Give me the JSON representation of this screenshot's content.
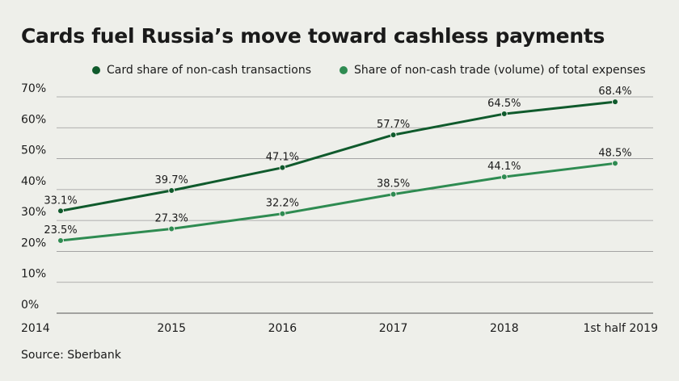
{
  "colors": {
    "background": "#eeefea",
    "series_dark": "#0f5a2c",
    "series_light": "#2e8b51",
    "grid": "#9a9a9a"
  },
  "source": "Source: Sberbank",
  "chart_data": {
    "type": "line",
    "title": "Cards fuel Russia’s move toward cashless payments",
    "categories": [
      "2014",
      "2015",
      "2016",
      "2017",
      "2018",
      "1st half 2019"
    ],
    "y_ticks": [
      "0%",
      "10%",
      "20%",
      "30%",
      "40%",
      "50%",
      "60%",
      "70%"
    ],
    "ylim": [
      0,
      70
    ],
    "grid": true,
    "legend_position": "top",
    "series": [
      {
        "name": "Card share of non-cash transactions",
        "values": [
          33.1,
          39.7,
          47.1,
          57.7,
          64.5,
          68.4
        ],
        "labels": [
          "33.1%",
          "39.7%",
          "47.1%",
          "57.7%",
          "64.5%",
          "68.4%"
        ],
        "color": "#0f5a2c"
      },
      {
        "name": "Share of non-cash trade (volume) of total expenses",
        "values": [
          23.5,
          27.3,
          32.2,
          38.5,
          44.1,
          48.5
        ],
        "labels": [
          "23.5%",
          "27.3%",
          "32.2%",
          "38.5%",
          "44.1%",
          "48.5%"
        ],
        "color": "#2e8b51"
      }
    ]
  }
}
